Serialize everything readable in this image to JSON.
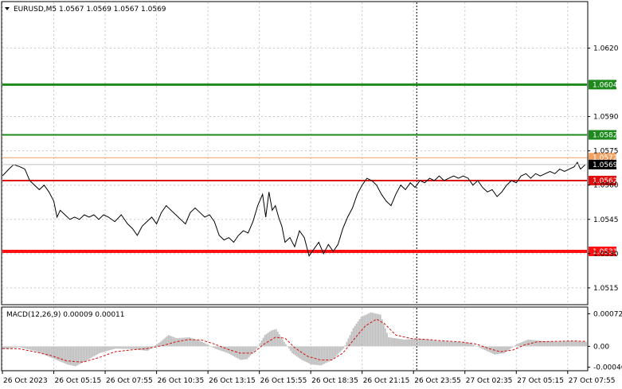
{
  "chart_data": [
    {
      "type": "line",
      "title": "EURUSD,M5  1.0567 1.0569 1.0567 1.0569",
      "ylim": [
        1.0508,
        1.064
      ],
      "y_ticks": [
        {
          "value": 1.062,
          "label": "1.0620"
        },
        {
          "value": 1.059,
          "label": "1.0590"
        },
        {
          "value": 1.0575,
          "label": "1.0575"
        },
        {
          "value": 1.056,
          "label": "1.0560"
        },
        {
          "value": 1.0545,
          "label": "1.0545"
        },
        {
          "value": 1.053,
          "label": "1.0530"
        },
        {
          "value": 1.0515,
          "label": "1.0515"
        }
      ],
      "x_ticks": [
        {
          "index": 0,
          "label": "26 Oct 2023"
        },
        {
          "index": 64,
          "label": "26 Oct 05:15"
        },
        {
          "index": 128,
          "label": "26 Oct 07:55"
        },
        {
          "index": 192,
          "label": "26 Oct 10:35"
        },
        {
          "index": 256,
          "label": "26 Oct 13:15"
        },
        {
          "index": 320,
          "label": "26 Oct 15:55"
        },
        {
          "index": 384,
          "label": "26 Oct 18:35"
        },
        {
          "index": 448,
          "label": "26 Oct 21:15"
        },
        {
          "index": 512,
          "label": "26 Oct 23:55"
        },
        {
          "index": 576,
          "label": "27 Oct 02:35"
        },
        {
          "index": 640,
          "label": "27 Oct 05:15"
        },
        {
          "index": 704,
          "label": "27 Oct 07:55"
        }
      ],
      "grid": true,
      "vertical_marker_index": 516,
      "levels": [
        {
          "value": 1.0604,
          "label": "1.0604",
          "color": "#1e8a1e",
          "weight": 3
        },
        {
          "value": 1.0582,
          "label": "1.0582",
          "color": "#1e8a1e",
          "weight": 2
        },
        {
          "value": 1.0572,
          "label": "1.0572",
          "color": "#f0a060",
          "weight": 1
        },
        {
          "value": 1.0562,
          "label": "1.0562",
          "color": "#e01010",
          "weight": 2
        },
        {
          "value": 1.0531,
          "label": "1.0531",
          "color": "#ff1010",
          "weight": 4
        }
      ],
      "current_price": {
        "value": 1.0569,
        "label": "1.0569"
      },
      "series": [
        {
          "points": [
            [
              0,
              1.0564
            ],
            [
              8,
              1.0567
            ],
            [
              14,
              1.0569
            ],
            [
              22,
              1.0568
            ],
            [
              28,
              1.0567
            ],
            [
              34,
              1.0562
            ],
            [
              40,
              1.056
            ],
            [
              46,
              1.0558
            ],
            [
              52,
              1.056
            ],
            [
              58,
              1.0557
            ],
            [
              64,
              1.0553
            ],
            [
              68,
              1.0546
            ],
            [
              72,
              1.0549
            ],
            [
              78,
              1.0547
            ],
            [
              84,
              1.0545
            ],
            [
              90,
              1.0546
            ],
            [
              96,
              1.0545
            ],
            [
              102,
              1.0547
            ],
            [
              108,
              1.0546
            ],
            [
              114,
              1.0547
            ],
            [
              120,
              1.0545
            ],
            [
              126,
              1.0547
            ],
            [
              132,
              1.0546
            ],
            [
              140,
              1.0544
            ],
            [
              148,
              1.0547
            ],
            [
              156,
              1.0543
            ],
            [
              162,
              1.0541
            ],
            [
              168,
              1.0538
            ],
            [
              174,
              1.0542
            ],
            [
              180,
              1.0544
            ],
            [
              186,
              1.0546
            ],
            [
              192,
              1.0543
            ],
            [
              198,
              1.0548
            ],
            [
              204,
              1.0551
            ],
            [
              210,
              1.0549
            ],
            [
              216,
              1.0547
            ],
            [
              222,
              1.0545
            ],
            [
              228,
              1.0543
            ],
            [
              234,
              1.0548
            ],
            [
              240,
              1.055
            ],
            [
              246,
              1.0548
            ],
            [
              252,
              1.0546
            ],
            [
              258,
              1.0547
            ],
            [
              264,
              1.0544
            ],
            [
              270,
              1.0538
            ],
            [
              276,
              1.0536
            ],
            [
              282,
              1.0537
            ],
            [
              288,
              1.0535
            ],
            [
              294,
              1.0538
            ],
            [
              300,
              1.054
            ],
            [
              306,
              1.0539
            ],
            [
              312,
              1.0544
            ],
            [
              318,
              1.0551
            ],
            [
              324,
              1.0556
            ],
            [
              328,
              1.0546
            ],
            [
              332,
              1.0557
            ],
            [
              336,
              1.0549
            ],
            [
              340,
              1.0551
            ],
            [
              344,
              1.0546
            ],
            [
              348,
              1.0542
            ],
            [
              352,
              1.0535
            ],
            [
              358,
              1.0537
            ],
            [
              364,
              1.0533
            ],
            [
              370,
              1.054
            ],
            [
              376,
              1.0537
            ],
            [
              382,
              1.0529
            ],
            [
              388,
              1.0532
            ],
            [
              394,
              1.0535
            ],
            [
              400,
              1.053
            ],
            [
              406,
              1.0534
            ],
            [
              412,
              1.0531
            ],
            [
              418,
              1.0534
            ],
            [
              424,
              1.0541
            ],
            [
              430,
              1.0546
            ],
            [
              436,
              1.055
            ],
            [
              442,
              1.0556
            ],
            [
              448,
              1.056
            ],
            [
              454,
              1.0563
            ],
            [
              460,
              1.0562
            ],
            [
              466,
              1.056
            ],
            [
              472,
              1.0556
            ],
            [
              478,
              1.0553
            ],
            [
              484,
              1.0551
            ],
            [
              490,
              1.0556
            ],
            [
              496,
              1.056
            ],
            [
              502,
              1.0558
            ],
            [
              508,
              1.0561
            ],
            [
              514,
              1.0559
            ],
            [
              520,
              1.0562
            ],
            [
              526,
              1.0561
            ],
            [
              532,
              1.0563
            ],
            [
              538,
              1.0562
            ],
            [
              544,
              1.0564
            ],
            [
              550,
              1.0562
            ],
            [
              556,
              1.0563
            ],
            [
              562,
              1.0564
            ],
            [
              568,
              1.0563
            ],
            [
              574,
              1.0564
            ],
            [
              580,
              1.0563
            ],
            [
              586,
              1.056
            ],
            [
              592,
              1.0562
            ],
            [
              598,
              1.0559
            ],
            [
              604,
              1.0557
            ],
            [
              610,
              1.0558
            ],
            [
              616,
              1.0555
            ],
            [
              622,
              1.0557
            ],
            [
              628,
              1.056
            ],
            [
              634,
              1.0562
            ],
            [
              640,
              1.0561
            ],
            [
              646,
              1.0564
            ],
            [
              652,
              1.0565
            ],
            [
              658,
              1.0563
            ],
            [
              664,
              1.0565
            ],
            [
              670,
              1.0564
            ],
            [
              676,
              1.0565
            ],
            [
              682,
              1.0566
            ],
            [
              688,
              1.0565
            ],
            [
              694,
              1.0567
            ],
            [
              700,
              1.0566
            ],
            [
              706,
              1.0567
            ],
            [
              712,
              1.0568
            ],
            [
              716,
              1.057
            ],
            [
              720,
              1.0567
            ],
            [
              726,
              1.0569
            ]
          ]
        }
      ]
    },
    {
      "type": "bar",
      "title": "MACD(12,26,9) 0.00009 0.00011",
      "ylim": [
        -0.00052,
        0.00085
      ],
      "y_ticks": [
        {
          "value": 0.00072,
          "label": "0.00072"
        },
        {
          "value": 0.0,
          "label": "0.00"
        },
        {
          "value": -0.00046,
          "label": "-0.00046"
        }
      ],
      "signal_color": "#d01010",
      "histogram_color": "#c0c0c0",
      "series": [
        {
          "name": "histogram",
          "points": [
            [
              0,
              -6e-05
            ],
            [
              20,
              -2e-05
            ],
            [
              40,
              -0.0001
            ],
            [
              60,
              -0.00025
            ],
            [
              80,
              -0.0004
            ],
            [
              90,
              -0.00044
            ],
            [
              100,
              -0.00035
            ],
            [
              120,
              -0.00015
            ],
            [
              140,
              -5e-05
            ],
            [
              160,
              -6e-05
            ],
            [
              180,
              -0.0001
            ],
            [
              196,
              0.0001
            ],
            [
              206,
              0.00025
            ],
            [
              216,
              0.00018
            ],
            [
              232,
              0.0002
            ],
            [
              248,
              0.0001
            ],
            [
              264,
              -5e-05
            ],
            [
              280,
              -0.00015
            ],
            [
              296,
              -0.0003
            ],
            [
              304,
              -0.00028
            ],
            [
              316,
              -5e-05
            ],
            [
              326,
              0.00025
            ],
            [
              334,
              0.00035
            ],
            [
              340,
              0.00038
            ],
            [
              350,
              0.0001
            ],
            [
              360,
              -0.00015
            ],
            [
              372,
              -0.0003
            ],
            [
              384,
              -0.0004
            ],
            [
              396,
              -0.00042
            ],
            [
              410,
              -0.0003
            ],
            [
              424,
              -5e-05
            ],
            [
              436,
              0.0004
            ],
            [
              446,
              0.00065
            ],
            [
              458,
              0.00075
            ],
            [
              470,
              0.0007
            ],
            [
              480,
              0.0002
            ],
            [
              500,
              0.00015
            ],
            [
              520,
              0.00017
            ],
            [
              540,
              0.00012
            ],
            [
              560,
              0.0001
            ],
            [
              580,
              8e-05
            ],
            [
              596,
              -5e-05
            ],
            [
              612,
              -0.00018
            ],
            [
              624,
              -0.00015
            ],
            [
              640,
              5e-05
            ],
            [
              654,
              0.00015
            ],
            [
              670,
              0.00012
            ],
            [
              690,
              0.0001
            ],
            [
              710,
              0.00012
            ],
            [
              726,
              0.0001
            ]
          ]
        },
        {
          "name": "signal",
          "points": [
            [
              0,
              -5e-05
            ],
            [
              20,
              -5e-05
            ],
            [
              40,
              -0.00012
            ],
            [
              60,
              -0.0002
            ],
            [
              80,
              -0.00032
            ],
            [
              100,
              -0.00035
            ],
            [
              120,
              -0.00025
            ],
            [
              140,
              -0.00012
            ],
            [
              160,
              -8e-05
            ],
            [
              180,
              -5e-05
            ],
            [
              200,
              2e-05
            ],
            [
              216,
              0.0001
            ],
            [
              232,
              0.00015
            ],
            [
              248,
              0.00014
            ],
            [
              264,
              5e-05
            ],
            [
              280,
              -6e-05
            ],
            [
              296,
              -0.00015
            ],
            [
              312,
              -0.00015
            ],
            [
              326,
              5e-05
            ],
            [
              340,
              0.0002
            ],
            [
              352,
              0.00018
            ],
            [
              364,
              -3e-05
            ],
            [
              380,
              -0.00022
            ],
            [
              396,
              -0.0003
            ],
            [
              410,
              -0.0003
            ],
            [
              424,
              -0.00015
            ],
            [
              440,
              0.0002
            ],
            [
              452,
              0.00045
            ],
            [
              466,
              0.0006
            ],
            [
              476,
              0.0005
            ],
            [
              490,
              0.00025
            ],
            [
              510,
              0.00017
            ],
            [
              530,
              0.00015
            ],
            [
              550,
              0.00012
            ],
            [
              570,
              0.0001
            ],
            [
              590,
              5e-05
            ],
            [
              606,
              -5e-05
            ],
            [
              620,
              -0.00012
            ],
            [
              636,
              -8e-05
            ],
            [
              650,
              3e-05
            ],
            [
              666,
              0.0001
            ],
            [
              690,
              0.00011
            ],
            [
              710,
              0.00012
            ],
            [
              726,
              0.00011
            ]
          ]
        }
      ]
    }
  ]
}
